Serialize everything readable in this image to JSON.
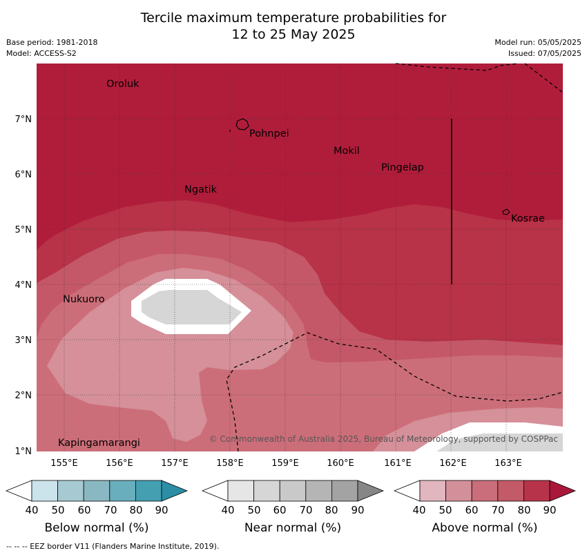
{
  "header": {
    "title_line1": "Tercile maximum temperature probabilities for",
    "title_line2": "12 to 25 May 2025",
    "base_period": "Base period: 1981-2018",
    "model": "Model: ACCESS-S2",
    "model_run": "Model run: 05/05/2025",
    "issued": "Issued: 07/05/2025"
  },
  "map": {
    "lon_labels": [
      "155°E",
      "156°E",
      "157°E",
      "158°E",
      "159°E",
      "160°E",
      "161°E",
      "162°E",
      "163°E"
    ],
    "lat_labels": [
      "7°N",
      "6°N",
      "5°N",
      "4°N",
      "3°N",
      "2°N",
      "1°N"
    ],
    "places": [
      "Oroluk",
      "Pohnpei",
      "Mokil",
      "Pingelap",
      "Ngatik",
      "Kosrae",
      "Nukuoro",
      "Kapingamarangi"
    ],
    "copyright": "© Commonwealth of Australia 2025, Bureau of Meteorology, supported by COSPPac"
  },
  "colorbars": [
    {
      "label": "Below normal (%)",
      "ticks": [
        "40",
        "50",
        "60",
        "70",
        "80",
        "90"
      ],
      "colors": [
        "#ffffff",
        "#cbe3ea",
        "#a7cad2",
        "#8ab8c2",
        "#68aebc",
        "#44a0b1",
        "#2c8ea5"
      ]
    },
    {
      "label": "Near normal (%)",
      "ticks": [
        "40",
        "50",
        "60",
        "70",
        "80",
        "90"
      ],
      "colors": [
        "#ffffff",
        "#e6e6e6",
        "#d6d6d6",
        "#c9c9c9",
        "#b5b5b5",
        "#a3a3a3",
        "#868686"
      ]
    },
    {
      "label": "Above normal (%)",
      "ticks": [
        "40",
        "50",
        "60",
        "70",
        "80",
        "90"
      ],
      "colors": [
        "#ffffff",
        "#e1b6be",
        "#d4909a",
        "#c96e7a",
        "#c35a68",
        "#b73349",
        "#a9183a"
      ]
    }
  ],
  "footnote": "--  --  -- EEZ border V11 (Flanders Marine Institute, 2019)."
}
